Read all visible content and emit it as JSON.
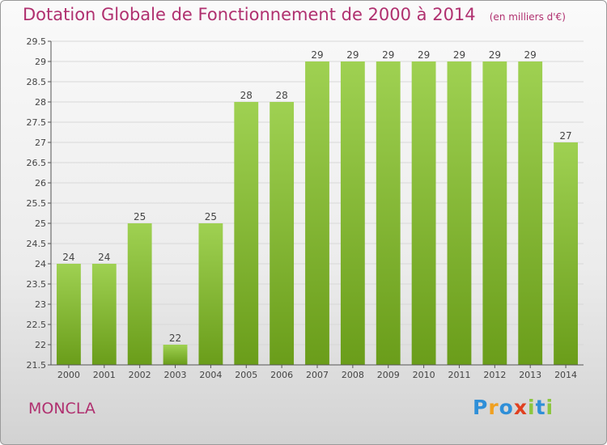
{
  "chart_data": {
    "type": "bar",
    "title": "Dotation Globale de Fonctionnement de 2000 à 2014",
    "subtitle": "(en milliers d'€)",
    "categories": [
      "2000",
      "2001",
      "2002",
      "2003",
      "2004",
      "2005",
      "2006",
      "2007",
      "2008",
      "2009",
      "2010",
      "2011",
      "2012",
      "2013",
      "2014"
    ],
    "values": [
      24,
      24,
      25,
      22,
      25,
      28,
      28,
      29,
      29,
      29,
      29,
      29,
      29,
      29,
      27
    ],
    "value_labels": [
      "24",
      "24",
      "25",
      "22",
      "25",
      "28",
      "28",
      "29",
      "29",
      "29",
      "29",
      "29",
      "29",
      "29",
      "27"
    ],
    "ylim": [
      21.5,
      29.5
    ],
    "yticks": [
      "21.5",
      "22",
      "22.5",
      "23",
      "23.5",
      "24",
      "24.5",
      "25",
      "25.5",
      "26",
      "26.5",
      "27",
      "27.5",
      "28",
      "28.5",
      "29",
      "29.5"
    ],
    "grid": true,
    "bar_color_top": "#9fd152",
    "bar_color_bottom": "#6a9d1a"
  },
  "place_name": "MONCLA",
  "logo": {
    "letters": [
      "P",
      "r",
      "o",
      "x",
      "i",
      "t",
      "i"
    ],
    "colors": [
      "#2f8fd8",
      "#f0a020",
      "#2f8fd8",
      "#e04020",
      "#8cc63f",
      "#2f8fd8",
      "#8cc63f"
    ]
  },
  "colors": {
    "title": "#b0306f",
    "axis": "#555555",
    "grid": "#d8d8d8"
  }
}
